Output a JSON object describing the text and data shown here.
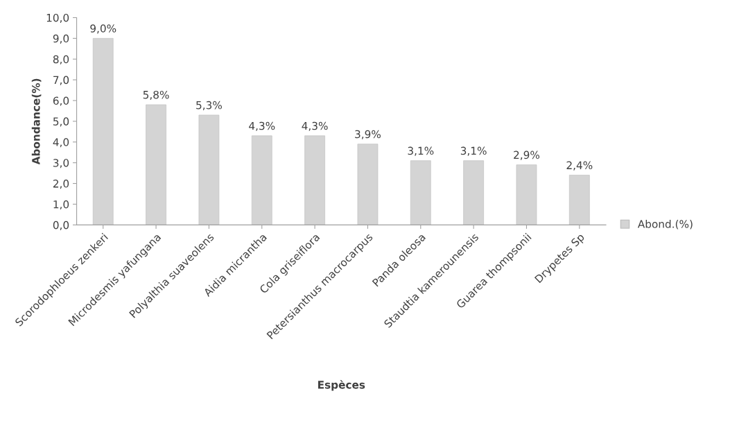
{
  "chart_data": {
    "type": "bar",
    "xlabel": "Espèces",
    "ylabel": "Abondance(%)",
    "categories": [
      "Scorodophloeus zenkeri",
      "Microdesmis yafungana",
      "Polyalthia suaveolens",
      "Aidia micrantha",
      "Cola griseiflora",
      "Petersianthus macrocarpus",
      "Panda oleosa",
      "Staudtia kamerounensis",
      "Guarea thompsonii",
      "Drypetes Sp"
    ],
    "series": [
      {
        "name": "Abond.(%)",
        "color": "#d4d4d4",
        "values": [
          9.0,
          5.8,
          5.3,
          4.3,
          4.3,
          3.9,
          3.1,
          3.1,
          2.9,
          2.4
        ],
        "value_labels": [
          "9,0%",
          "5,8%",
          "5,3%",
          "4,3%",
          "4,3%",
          "3,9%",
          "3,1%",
          "3,1%",
          "2,9%",
          "2,4%"
        ]
      }
    ],
    "ylim": [
      0,
      10
    ],
    "yticks": [
      {
        "value": 0,
        "label": "0,0"
      },
      {
        "value": 1,
        "label": "1,0"
      },
      {
        "value": 2,
        "label": "2,0"
      },
      {
        "value": 3,
        "label": "3,0"
      },
      {
        "value": 4,
        "label": "4,0"
      },
      {
        "value": 5,
        "label": "5,0"
      },
      {
        "value": 6,
        "label": "6,0"
      },
      {
        "value": 7,
        "label": "7,0"
      },
      {
        "value": 8,
        "label": "8,0"
      },
      {
        "value": 9,
        "label": "9,0"
      },
      {
        "value": 10,
        "label": "10,0"
      }
    ],
    "grid": false,
    "legend": "right"
  }
}
